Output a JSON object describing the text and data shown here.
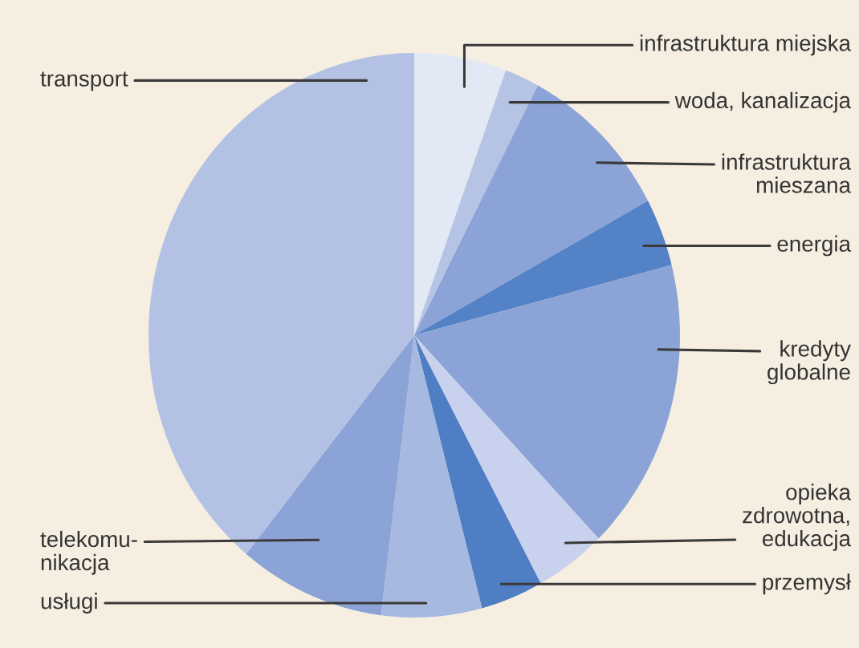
{
  "chart_data": {
    "type": "pie",
    "categories": [
      "infrastruktura miejska",
      "woda, kanalizacja",
      "infrastruktura\nmieszana",
      "energia",
      "kredyty\nglobalne",
      "opieka\nzdrowotna,\nedukacja",
      "przemysł",
      "usługi",
      "telekomu-\nnikacja",
      "transport"
    ],
    "values": [
      5.6,
      2.1,
      9.4,
      3.9,
      16.8,
      4.3,
      3.8,
      6.1,
      8.9,
      39.1
    ],
    "colors": [
      "#e3e8f5",
      "#b5c3e5",
      "#8ba3d6",
      "#5382c6",
      "#8ba3d6",
      "#c8d2ee",
      "#4f7ec4",
      "#a8b9e1",
      "#8ba3d6",
      "#b3c2e4"
    ]
  }
}
